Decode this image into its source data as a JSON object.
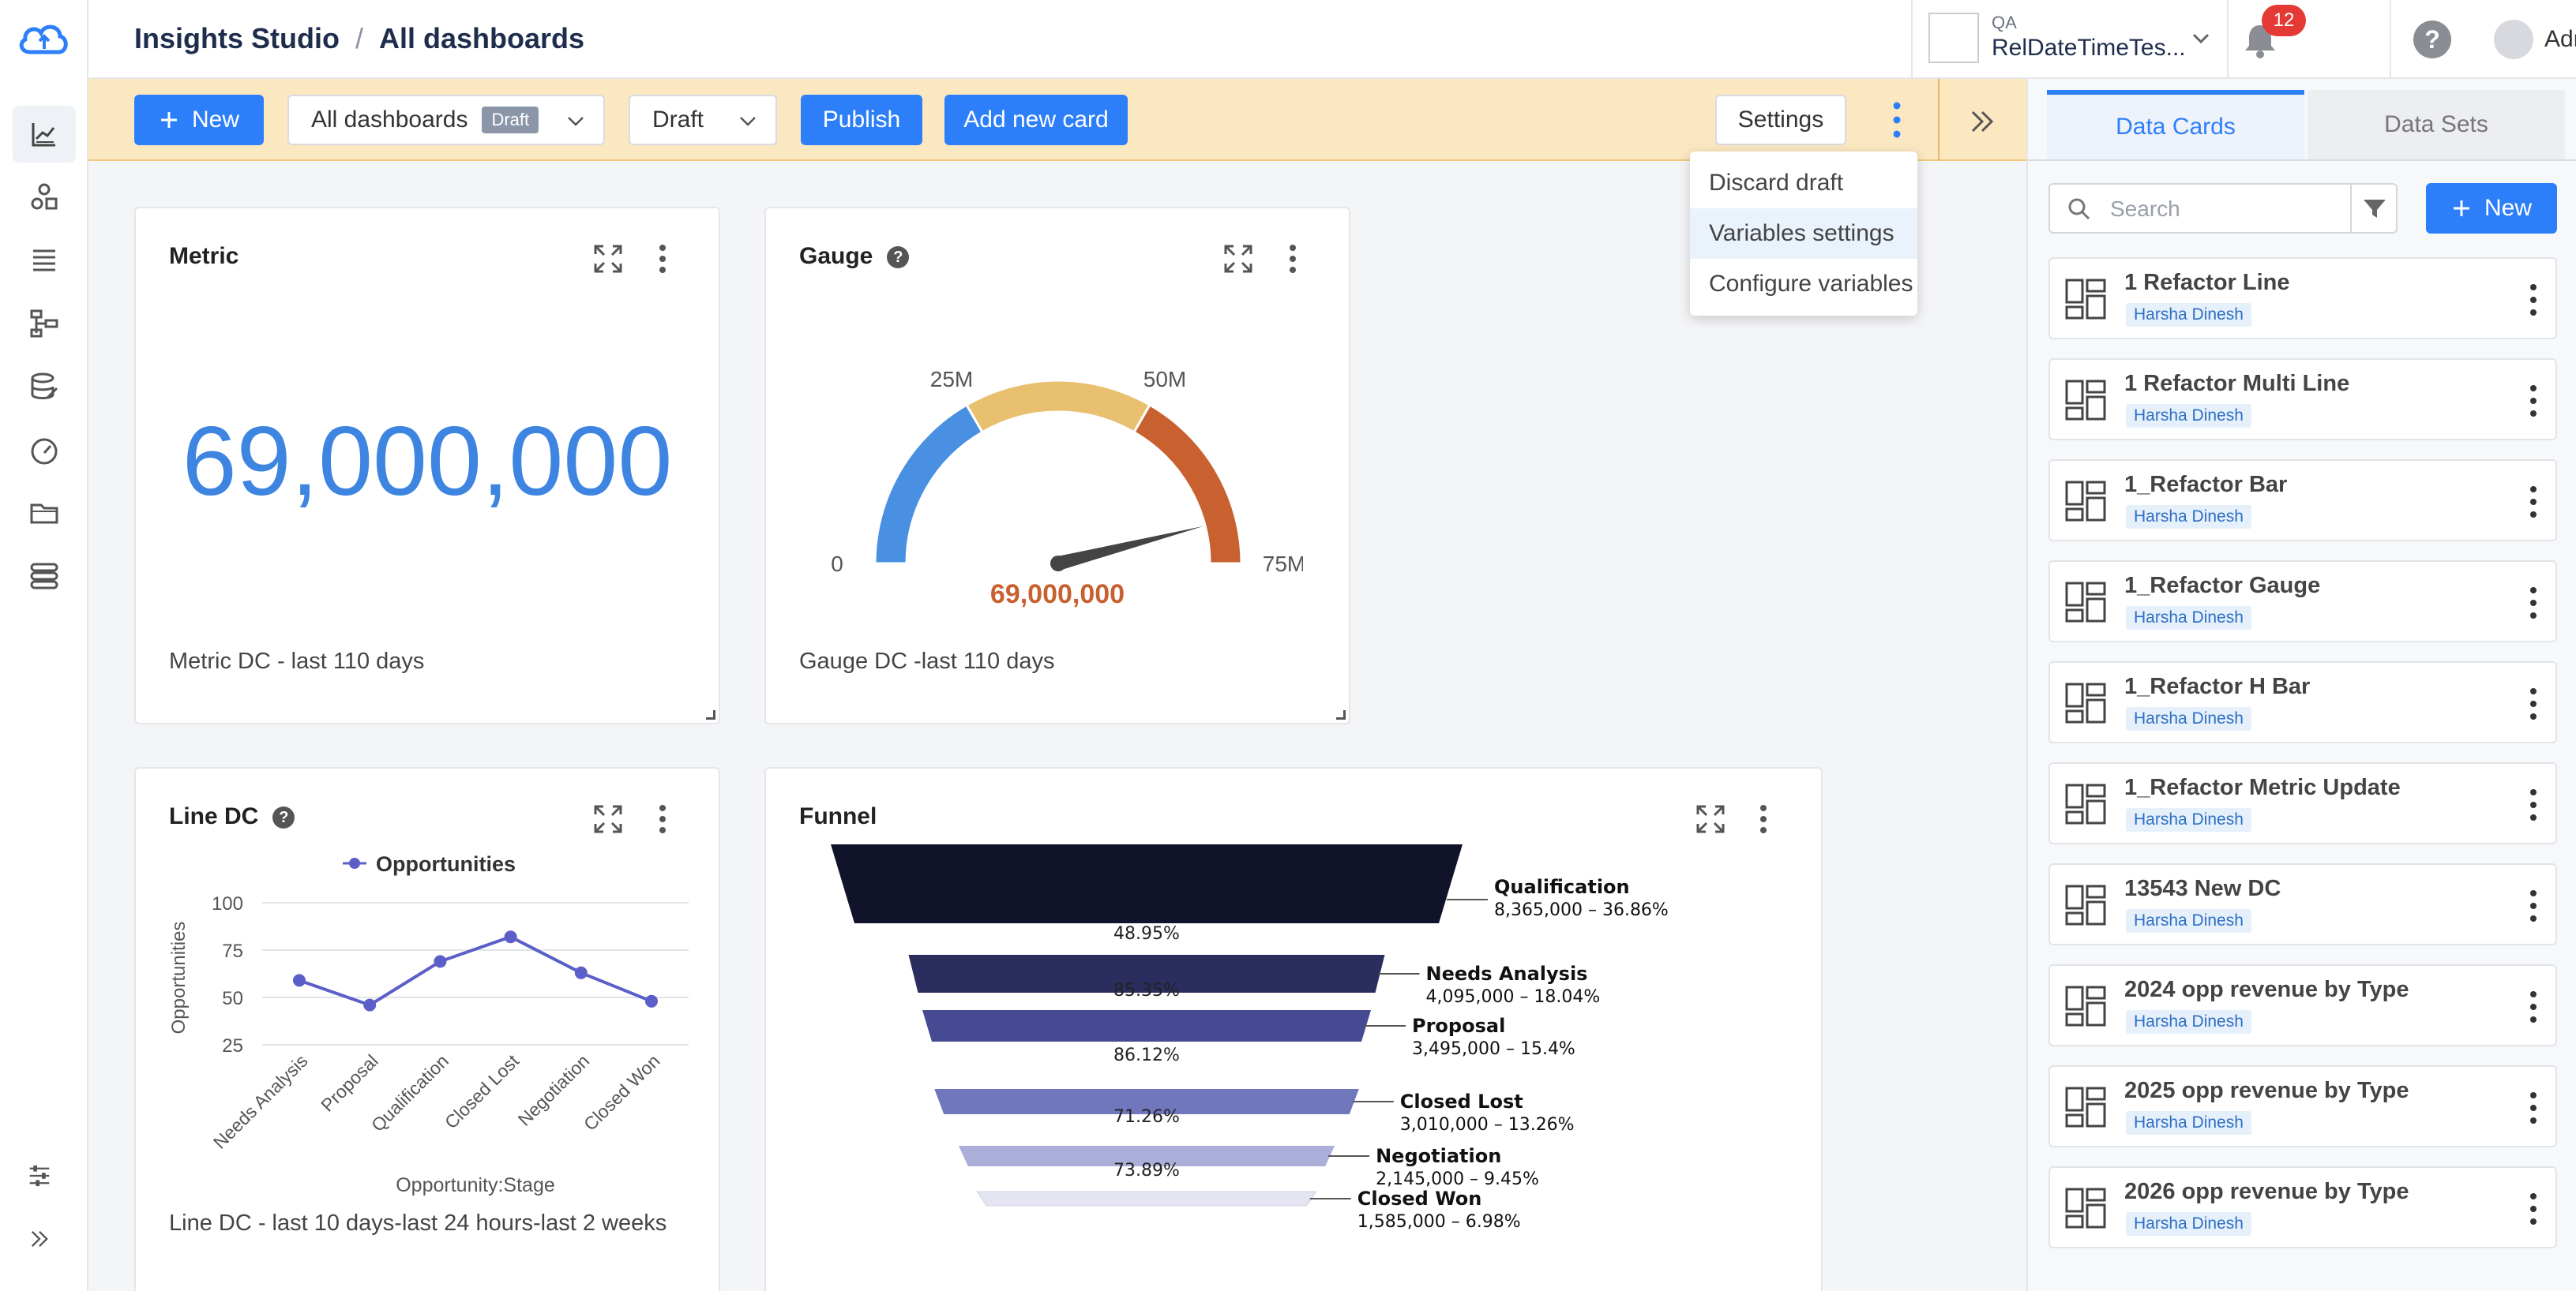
{
  "header": {
    "app_title": "Insights Studio",
    "separator": "/",
    "page_title": "All dashboards",
    "org_env": "QA",
    "org_name": "RelDateTimeTes...",
    "notification_count": "12",
    "help_label": "?",
    "user_name": "Admin"
  },
  "toolbar": {
    "new_label": "New",
    "dashboard_select": "All dashboards",
    "draft_tag": "Draft",
    "state_select": "Draft",
    "publish_label": "Publish",
    "add_card_label": "Add new card",
    "settings_label": "Settings"
  },
  "menu": {
    "items": [
      "Discard draft",
      "Variables settings",
      "Configure variables"
    ],
    "highlighted_index": 1
  },
  "cards": {
    "metric": {
      "title": "Metric",
      "value": "69,000,000",
      "footer": "Metric DC - last 110 days"
    },
    "gauge": {
      "title": "Gauge",
      "info": "?",
      "value": "69,000,000",
      "footer": "Gauge DC -last 110 days",
      "ticks": [
        "0",
        "25M",
        "50M",
        "75M"
      ],
      "colors": [
        "#4a90e2",
        "#e8c070",
        "#c8612f"
      ]
    },
    "line": {
      "title": "Line DC",
      "info": "?",
      "footer": "Line DC - last 10 days-last 24 hours-last 2 weeks"
    },
    "funnel": {
      "title": "Funnel"
    }
  },
  "chart_data": [
    {
      "type": "line",
      "title": "",
      "xlabel": "Opportunity:Stage",
      "ylabel": "Opportunities",
      "categories": [
        "Needs Analysis",
        "Proposal",
        "Qualification",
        "Closed Lost",
        "Negotiation",
        "Closed Won"
      ],
      "series": [
        {
          "name": "Opportunities",
          "values": [
            59,
            46,
            69,
            82,
            63,
            48
          ]
        }
      ],
      "yticks": [
        "100",
        "75",
        "50",
        "25"
      ],
      "ylim": [
        15,
        105
      ],
      "legend": "top",
      "grid": true,
      "color": "#5b5fc7"
    },
    {
      "type": "funnel",
      "title": "",
      "stages": [
        {
          "name": "Qualification",
          "value": 8365000,
          "detail": "8,365,000 – 36.86%",
          "color": "#11132a"
        },
        {
          "name": "Needs Analysis",
          "value": 4095000,
          "detail": "4,095,000 – 18.04%",
          "color": "#2a2d5e"
        },
        {
          "name": "Proposal",
          "value": 3495000,
          "detail": "3,495,000 – 15.4%",
          "color": "#454a93"
        },
        {
          "name": "Closed Lost",
          "value": 3010000,
          "detail": "3,010,000 – 13.26%",
          "color": "#7077bd"
        },
        {
          "name": "Negotiation",
          "value": 2145000,
          "detail": "2,145,000 – 9.45%",
          "color": "#aaaed8"
        },
        {
          "name": "Closed Won",
          "value": 1585000,
          "detail": "1,585,000 – 6.98%",
          "color": "#e4e5f1"
        }
      ],
      "conversions": [
        "48.95%",
        "85.35%",
        "86.12%",
        "71.26%",
        "73.89%"
      ]
    },
    {
      "type": "gauge",
      "title": "",
      "value": 69000000,
      "min": 0,
      "max": 75000000,
      "bands": [
        [
          0,
          25000000
        ],
        [
          25000000,
          50000000
        ],
        [
          50000000,
          75000000
        ]
      ]
    }
  ],
  "right_panel": {
    "tabs": [
      "Data Cards",
      "Data Sets"
    ],
    "search_placeholder": "Search",
    "new_label": "New",
    "data_cards": [
      {
        "name": "1 Refactor Line",
        "owner": "Harsha Dinesh"
      },
      {
        "name": "1 Refactor Multi Line",
        "owner": "Harsha Dinesh"
      },
      {
        "name": "1_Refactor Bar",
        "owner": "Harsha Dinesh"
      },
      {
        "name": "1_Refactor Gauge",
        "owner": "Harsha Dinesh"
      },
      {
        "name": "1_Refactor H Bar",
        "owner": "Harsha Dinesh"
      },
      {
        "name": "1_Refactor Metric Update",
        "owner": "Harsha Dinesh"
      },
      {
        "name": "13543 New DC",
        "owner": "Harsha Dinesh"
      },
      {
        "name": "2024 opp revenue by Type",
        "owner": "Harsha Dinesh"
      },
      {
        "name": "2025 opp revenue by Type",
        "owner": "Harsha Dinesh"
      },
      {
        "name": "2026 opp revenue by Type",
        "owner": "Harsha Dinesh"
      }
    ]
  },
  "colors": {
    "accent": "#2d7ff9",
    "toolbar_bg": "#fbe7c0",
    "metric_value": "#3d85e0",
    "gauge_value": "#c8612f"
  },
  "icons": {
    "rail": [
      "analytics-icon",
      "shapes-icon",
      "list-icon",
      "workflow-icon",
      "database-edit-icon",
      "speedometer-icon",
      "folder-icon",
      "stack-icon"
    ],
    "rail_bottom": [
      "sliders-icon",
      "expand-icon"
    ]
  }
}
